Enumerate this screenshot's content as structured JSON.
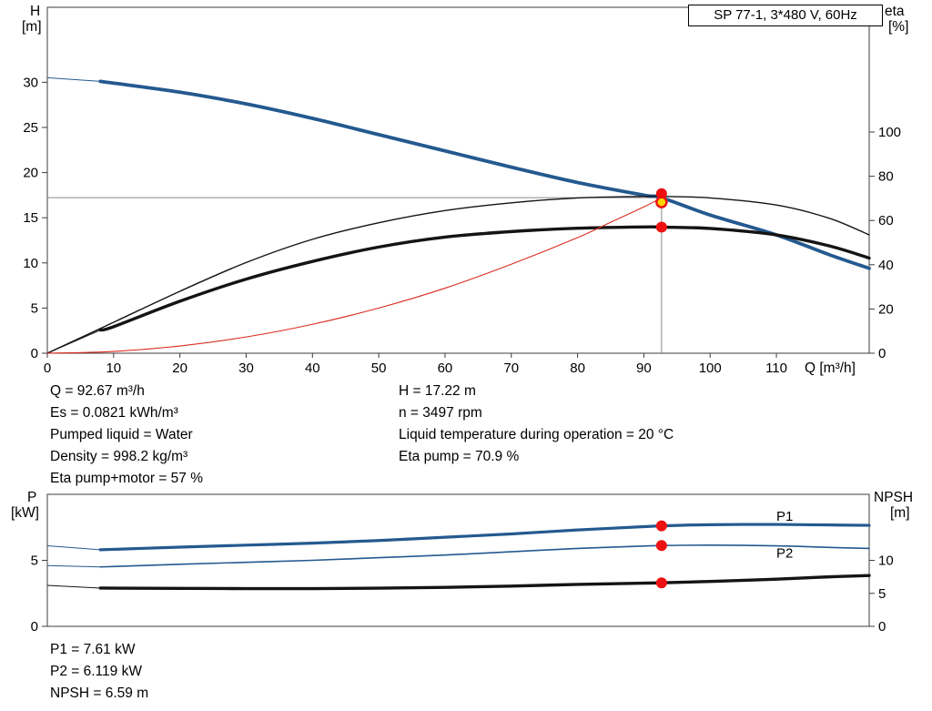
{
  "title_box": "SP 77-1, 3*480 V, 60Hz",
  "colors": {
    "blue": "#24598f",
    "black": "#141414",
    "red": "#d92b1f",
    "dot_red": "#ee1111",
    "dot_yellow": "#ffd500",
    "gray": "#8a8a8a"
  },
  "chart_data": [
    {
      "type": "line",
      "axes": {
        "x": {
          "label": "Q [m³/h]",
          "lim": [
            0,
            124
          ],
          "ticks": [
            0,
            10,
            20,
            30,
            40,
            50,
            60,
            70,
            80,
            90,
            100,
            110
          ],
          "show_labels": true
        },
        "left": {
          "title": [
            "H",
            "[m]"
          ],
          "lim": [
            0,
            38.3
          ],
          "ticks": [
            0,
            5,
            10,
            15,
            20,
            25,
            30
          ]
        },
        "right": {
          "title": [
            "eta",
            "[%]"
          ],
          "lim": [
            0,
            156.4
          ],
          "ticks": [
            0,
            20,
            40,
            60,
            80,
            100
          ]
        }
      },
      "series": [
        {
          "name": "head-curve",
          "axis": "left",
          "color": "blue",
          "width": 3.8,
          "lead": [
            0,
            30.5
          ],
          "x": [
            8,
            20,
            30,
            40,
            50,
            60,
            70,
            80,
            90,
            92.67,
            100,
            110,
            118,
            124
          ],
          "y": [
            30.1,
            28.9,
            27.6,
            26.0,
            24.2,
            22.4,
            20.6,
            18.9,
            17.5,
            17.22,
            15.3,
            13.1,
            10.9,
            9.4
          ]
        },
        {
          "name": "eta-pump-curve",
          "axis": "right",
          "color": "black",
          "width": 1.4,
          "x": [
            0,
            10,
            20,
            30,
            40,
            50,
            60,
            70,
            80,
            90,
            92.67,
            100,
            110,
            118,
            124
          ],
          "y": [
            0,
            14,
            28,
            41,
            51.5,
            59,
            64.5,
            68,
            70.2,
            70.9,
            70.9,
            70.2,
            67,
            61,
            53.5
          ]
        },
        {
          "name": "eta-pump-motor-curve",
          "axis": "right",
          "color": "black",
          "width": 3.4,
          "lead": [
            0,
            0
          ],
          "x": [
            8,
            10,
            20,
            30,
            40,
            50,
            60,
            70,
            80,
            90,
            92.67,
            100,
            110,
            118,
            124
          ],
          "y": [
            10.5,
            12,
            23.5,
            33.5,
            41.5,
            48,
            52.5,
            55,
            56.5,
            57.1,
            57,
            56.4,
            53.5,
            48.5,
            43
          ]
        },
        {
          "name": "system-curve",
          "axis": "left",
          "color": "red",
          "width": 1.1,
          "x": [
            0,
            10,
            20,
            30,
            40,
            50,
            60,
            70,
            80,
            85,
            90,
            92.67
          ],
          "y": [
            0,
            0.2,
            0.8,
            1.8,
            3.2,
            5.0,
            7.2,
            9.85,
            12.8,
            14.5,
            16.2,
            17.22
          ]
        }
      ],
      "ref_lines": [
        {
          "type": "h",
          "axis": "left",
          "value": 17.22,
          "x_from": 0,
          "x_to": 92.67
        },
        {
          "type": "v",
          "axis": "left",
          "value": 92.67,
          "y_from": 0,
          "y_to": 17.9
        }
      ],
      "markers": [
        {
          "name": "eta-pump-point",
          "x": 92.67,
          "y": 70.9,
          "axis": "right",
          "fill": "dot_red",
          "dy": -3
        },
        {
          "name": "duty-point",
          "x": 92.67,
          "y": 17.22,
          "axis": "left",
          "fill": "dot_yellow",
          "ring": "dot_red",
          "dy": 5
        },
        {
          "name": "eta-motor-point",
          "x": 92.67,
          "y": 57,
          "axis": "right",
          "fill": "dot_red",
          "dy": 0
        }
      ],
      "labels": []
    },
    {
      "type": "line",
      "axes": {
        "x": {
          "label": "",
          "lim": [
            0,
            124
          ],
          "ticks": [],
          "show_labels": false
        },
        "left": {
          "title": [
            "P",
            "[kW]"
          ],
          "lim": [
            0,
            10
          ],
          "ticks": [
            0,
            5
          ]
        },
        "right": {
          "title": [
            "NPSH",
            "[m]"
          ],
          "lim": [
            0,
            20
          ],
          "ticks": [
            0,
            5,
            10
          ]
        }
      },
      "series": [
        {
          "name": "p1-curve",
          "axis": "left",
          "color": "blue",
          "width": 3.2,
          "lead": [
            0,
            6.1
          ],
          "x": [
            8,
            20,
            30,
            40,
            50,
            60,
            70,
            80,
            90,
            92.67,
            100,
            110,
            118,
            124
          ],
          "y": [
            5.8,
            6.0,
            6.15,
            6.3,
            6.5,
            6.75,
            7.0,
            7.3,
            7.55,
            7.61,
            7.7,
            7.72,
            7.68,
            7.65
          ]
        },
        {
          "name": "p2-curve",
          "axis": "left",
          "color": "blue",
          "width": 1.6,
          "lead": [
            0,
            4.6
          ],
          "x": [
            8,
            20,
            30,
            40,
            50,
            60,
            70,
            80,
            90,
            92.67,
            100,
            110,
            118,
            124
          ],
          "y": [
            4.5,
            4.7,
            4.85,
            5.0,
            5.2,
            5.4,
            5.65,
            5.9,
            6.08,
            6.119,
            6.15,
            6.1,
            5.98,
            5.9
          ]
        },
        {
          "name": "npsh-curve",
          "axis": "right",
          "color": "black",
          "width": 3.4,
          "lead": [
            0,
            6.2
          ],
          "x": [
            8,
            20,
            30,
            40,
            50,
            60,
            70,
            80,
            90,
            92.67,
            100,
            110,
            118,
            124
          ],
          "y": [
            5.8,
            5.75,
            5.72,
            5.72,
            5.78,
            5.9,
            6.1,
            6.35,
            6.55,
            6.59,
            6.8,
            7.15,
            7.5,
            7.7
          ]
        }
      ],
      "ref_lines": [],
      "markers": [
        {
          "name": "p1-point",
          "x": 92.67,
          "y": 7.61,
          "axis": "left",
          "fill": "dot_red",
          "dy": 0
        },
        {
          "name": "p2-point",
          "x": 92.67,
          "y": 6.119,
          "axis": "left",
          "fill": "dot_red",
          "dy": 0
        },
        {
          "name": "npsh-point",
          "x": 92.67,
          "y": 6.59,
          "axis": "right",
          "fill": "dot_red",
          "dy": 0
        }
      ],
      "labels": [
        {
          "text": "P1",
          "x": 110,
          "y": 8.0,
          "axis": "left",
          "color": "blue"
        },
        {
          "text": "P2",
          "x": 110,
          "y": 5.2,
          "axis": "left",
          "color": "blue"
        }
      ]
    }
  ],
  "info_top": {
    "left": [
      "Q = 92.67 m³/h",
      "Es = 0.0821 kWh/m³",
      "Pumped liquid = Water",
      "Density = 998.2 kg/m³",
      "Eta pump+motor = 57 %"
    ],
    "right": [
      "H = 17.22 m",
      "n = 3497 rpm",
      "Liquid temperature during operation = 20 °C",
      "Eta pump = 70.9 %"
    ]
  },
  "info_bottom": [
    "P1 = 7.61 kW",
    "P2 = 6.119 kW",
    "NPSH = 6.59 m"
  ]
}
